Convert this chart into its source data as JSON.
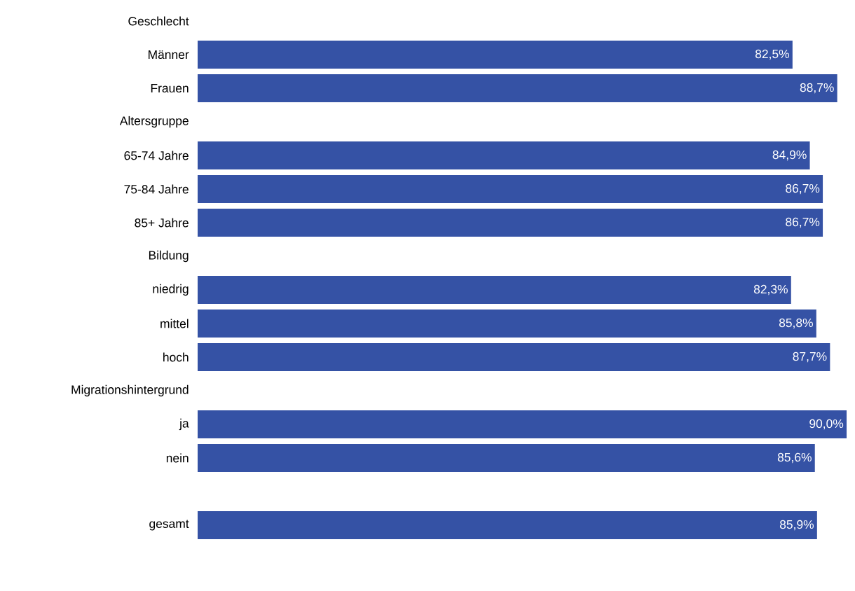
{
  "chart_data": {
    "type": "bar",
    "orientation": "horizontal",
    "color": "#3552a5",
    "categories": [
      "Geschlecht",
      "Männer",
      "Frauen",
      "Altersgruppe",
      "65-74 Jahre",
      "75-84 Jahre",
      "85+ Jahre",
      "Bildung",
      "niedrig",
      "mittel",
      "hoch",
      "Migrationshintergrund",
      "ja",
      "nein",
      null,
      "gesamt"
    ],
    "values": [
      null,
      82.5,
      88.7,
      null,
      84.9,
      86.7,
      86.7,
      null,
      82.3,
      85.8,
      87.7,
      null,
      90.0,
      85.6,
      null,
      85.9
    ],
    "value_labels": [
      null,
      "82,5%",
      "88,7%",
      null,
      "84,9%",
      "86,7%",
      "86,7%",
      null,
      "82,3%",
      "85,8%",
      "87,7%",
      null,
      "90,0%",
      "85,6%",
      null,
      "85,9%"
    ]
  }
}
